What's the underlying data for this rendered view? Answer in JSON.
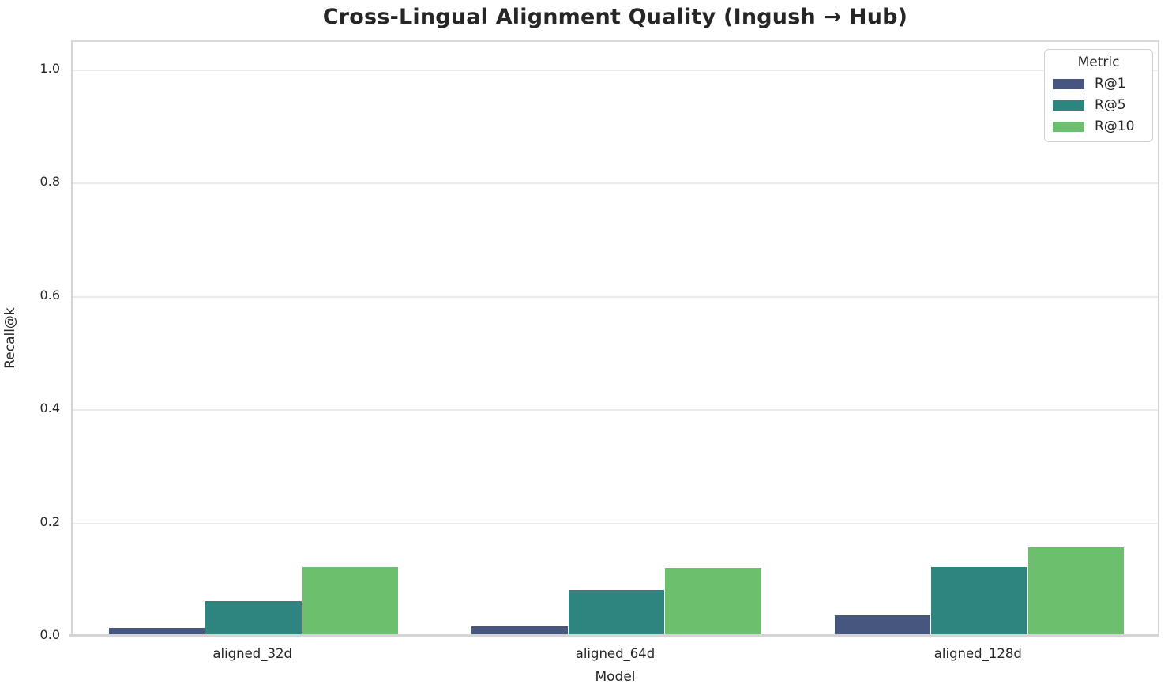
{
  "chart_data": {
    "type": "bar",
    "title": "Cross-Lingual Alignment Quality (Ingush → Hub)",
    "xlabel": "Model",
    "ylabel": "Recall@k",
    "legend_title": "Metric",
    "legend_position": "upper right",
    "grid": "horizontal",
    "categories": [
      "aligned_32d",
      "aligned_64d",
      "aligned_128d"
    ],
    "series": [
      {
        "name": "R@1",
        "color": "#46567e",
        "values": [
          0.013,
          0.016,
          0.035
        ]
      },
      {
        "name": "R@5",
        "color": "#2e8580",
        "values": [
          0.06,
          0.08,
          0.12
        ]
      },
      {
        "name": "R@10",
        "color": "#6cbf6c",
        "values": [
          0.12,
          0.118,
          0.155
        ]
      }
    ],
    "ylim": [
      0,
      1.05
    ],
    "yticks": [
      0.0,
      0.2,
      0.4,
      0.6,
      0.8,
      1.0
    ],
    "bar_group_fraction": 0.8
  },
  "colors": {
    "text": "#262626",
    "gridline": "#ebebeb",
    "spine": "#d4d4d4",
    "background": "#ffffff"
  }
}
